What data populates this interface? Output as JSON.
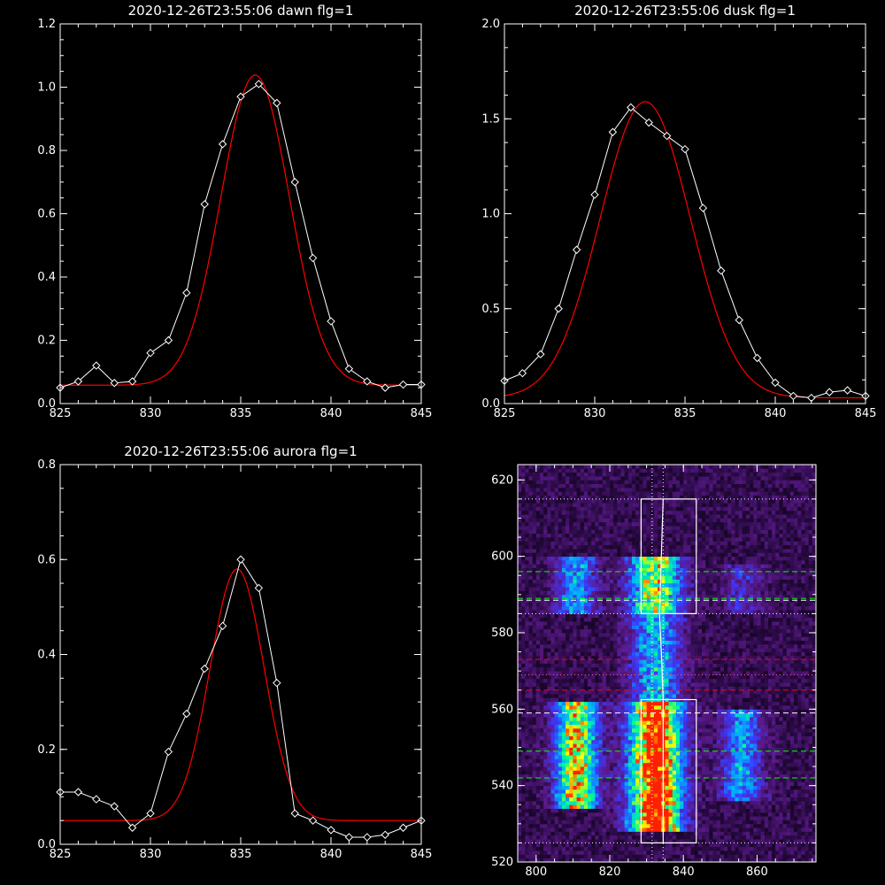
{
  "chart_data": [
    {
      "type": "line",
      "title": "2020-12-26T23:55:06 dawn flg=1",
      "xlim": [
        825,
        845
      ],
      "ylim": [
        0.0,
        1.2
      ],
      "x_ticks": [
        825,
        830,
        835,
        840,
        845
      ],
      "x_tick_labels": [
        "825",
        "830",
        "835",
        "840",
        "845"
      ],
      "y_ticks": [
        0.0,
        0.2,
        0.4,
        0.6,
        0.8,
        1.0,
        1.2
      ],
      "y_tick_labels": [
        "0.0",
        "0.2",
        "0.4",
        "0.6",
        "0.8",
        "1.0",
        "1.2"
      ],
      "series": [
        {
          "style": "white-diamond-line",
          "color": "#ffffff",
          "x": [
            825,
            826,
            827,
            828,
            829,
            830,
            831,
            832,
            833,
            834,
            835,
            836,
            837,
            838,
            839,
            840,
            841,
            842,
            843,
            844,
            845
          ],
          "y": [
            0.05,
            0.07,
            0.12,
            0.065,
            0.07,
            0.16,
            0.2,
            0.35,
            0.63,
            0.82,
            0.97,
            1.01,
            0.95,
            0.7,
            0.46,
            0.26,
            0.11,
            0.07,
            0.05,
            0.06,
            0.06
          ]
        },
        {
          "style": "red-fit",
          "color": "#ff0000",
          "fit": {
            "amplitude": 0.98,
            "center": 835.8,
            "sigma": 1.9,
            "baseline": 0.058,
            "x_start": 825,
            "x_end": 845
          }
        }
      ]
    },
    {
      "type": "line",
      "title": "2020-12-26T23:55:06 dusk flg=1",
      "xlim": [
        825,
        845
      ],
      "ylim": [
        0.0,
        2.0
      ],
      "x_ticks": [
        825,
        830,
        835,
        840,
        845
      ],
      "x_tick_labels": [
        "825",
        "830",
        "835",
        "840",
        "845"
      ],
      "y_ticks": [
        0.0,
        0.5,
        1.0,
        1.5,
        2.0
      ],
      "y_tick_labels": [
        "0.0",
        "0.5",
        "1.0",
        "1.5",
        "2.0"
      ],
      "series": [
        {
          "style": "white-diamond-line",
          "color": "#ffffff",
          "x": [
            825,
            826,
            827,
            828,
            829,
            830,
            831,
            832,
            833,
            834,
            835,
            836,
            837,
            838,
            839,
            840,
            841,
            842,
            843,
            844,
            845
          ],
          "y": [
            0.12,
            0.16,
            0.26,
            0.5,
            0.81,
            1.1,
            1.43,
            1.56,
            1.48,
            1.41,
            1.34,
            1.03,
            0.7,
            0.44,
            0.24,
            0.11,
            0.04,
            0.03,
            0.06,
            0.07,
            0.04
          ]
        },
        {
          "style": "red-fit",
          "color": "#ff0000",
          "fit": {
            "amplitude": 1.56,
            "center": 832.8,
            "sigma": 2.5,
            "baseline": 0.03,
            "x_start": 825,
            "x_end": 845
          }
        }
      ]
    },
    {
      "type": "line",
      "title": "2020-12-26T23:55:06 aurora flg=1",
      "xlim": [
        825,
        845
      ],
      "ylim": [
        0.0,
        0.8
      ],
      "x_ticks": [
        825,
        830,
        835,
        840,
        845
      ],
      "x_tick_labels": [
        "825",
        "830",
        "835",
        "840",
        "845"
      ],
      "y_ticks": [
        0.0,
        0.2,
        0.4,
        0.6,
        0.8
      ],
      "y_tick_labels": [
        "0.0",
        "0.2",
        "0.4",
        "0.6",
        "0.8"
      ],
      "series": [
        {
          "style": "white-diamond-line",
          "color": "#ffffff",
          "x": [
            825,
            826,
            827,
            828,
            829,
            830,
            831,
            832,
            833,
            834,
            835,
            836,
            837,
            838,
            839,
            840,
            841,
            842,
            843,
            844,
            845
          ],
          "y": [
            0.11,
            0.11,
            0.095,
            0.08,
            0.035,
            0.065,
            0.195,
            0.275,
            0.37,
            0.46,
            0.6,
            0.54,
            0.34,
            0.065,
            0.05,
            0.03,
            0.015,
            0.015,
            0.02,
            0.035,
            0.05
          ]
        },
        {
          "style": "red-fit",
          "color": "#ff0000",
          "fit": {
            "amplitude": 0.53,
            "center": 834.8,
            "sigma": 1.5,
            "baseline": 0.05,
            "x_start": 825,
            "x_end": 845
          }
        }
      ]
    },
    {
      "type": "heatmap",
      "title": "",
      "xlim": [
        795,
        876
      ],
      "ylim": [
        520,
        624
      ],
      "x_ticks": [
        800,
        820,
        840,
        860
      ],
      "x_tick_labels": [
        "800",
        "820",
        "840",
        "860"
      ],
      "y_ticks": [
        520,
        540,
        560,
        580,
        600,
        620
      ],
      "y_tick_labels": [
        "520",
        "540",
        "560",
        "580",
        "600",
        "620"
      ],
      "colormap": [
        "#000000",
        "#2a0a45",
        "#5a1a8a",
        "#3a3aff",
        "#00b0ff",
        "#00ff90",
        "#ffff00",
        "#ff2000"
      ],
      "emission_columns": [
        {
          "x_center": 811,
          "x_width": 4,
          "segments": [
            [
              534,
              562,
              0.75
            ],
            [
              585,
              600,
              0.4
            ]
          ]
        },
        {
          "x_center": 832.5,
          "x_width": 5,
          "segments": [
            [
              528,
              562,
              1.0
            ],
            [
              562,
              585,
              0.45
            ],
            [
              585,
              600,
              0.7
            ]
          ]
        },
        {
          "x_center": 856,
          "x_width": 4,
          "segments": [
            [
              536,
              560,
              0.4
            ],
            [
              585,
              598,
              0.2
            ]
          ]
        }
      ],
      "boxes": [
        {
          "x": [
            828.5,
            843.5
          ],
          "y": [
            525,
            562.5
          ],
          "color": "#ffffff"
        },
        {
          "x": [
            828.5,
            843.5
          ],
          "y": [
            585,
            615
          ],
          "color": "#ffffff"
        }
      ],
      "vertical_dotted_lines": [
        {
          "x": 831.5,
          "color": "#ffffff"
        },
        {
          "x": 834.5,
          "color": "#ffffff"
        }
      ],
      "horizontal_dotted_lines": [
        {
          "y": 615,
          "color": "#ffffff"
        },
        {
          "y": 585,
          "color": "#ffffff"
        },
        {
          "y": 525,
          "color": "#ffffff"
        },
        {
          "y": 569,
          "color": "#ff6060"
        }
      ],
      "horizontal_dashed_lines": [
        {
          "y": 596,
          "color": "#00ff00"
        },
        {
          "y": 589,
          "color": "#00ff00"
        },
        {
          "y": 588.5,
          "color": "#ffffff"
        },
        {
          "y": 573,
          "color": "#ff0000"
        },
        {
          "y": 565,
          "color": "#ff0000"
        },
        {
          "y": 559,
          "color": "#ffffff"
        },
        {
          "y": 549,
          "color": "#00ff00"
        },
        {
          "y": 542,
          "color": "#00ff00"
        }
      ],
      "trace_path": {
        "color": "#ffffff",
        "x": [
          834.5,
          834.5,
          834,
          833.5,
          834.5
        ],
        "y": [
          525,
          562.5,
          575,
          585,
          615
        ]
      }
    }
  ]
}
